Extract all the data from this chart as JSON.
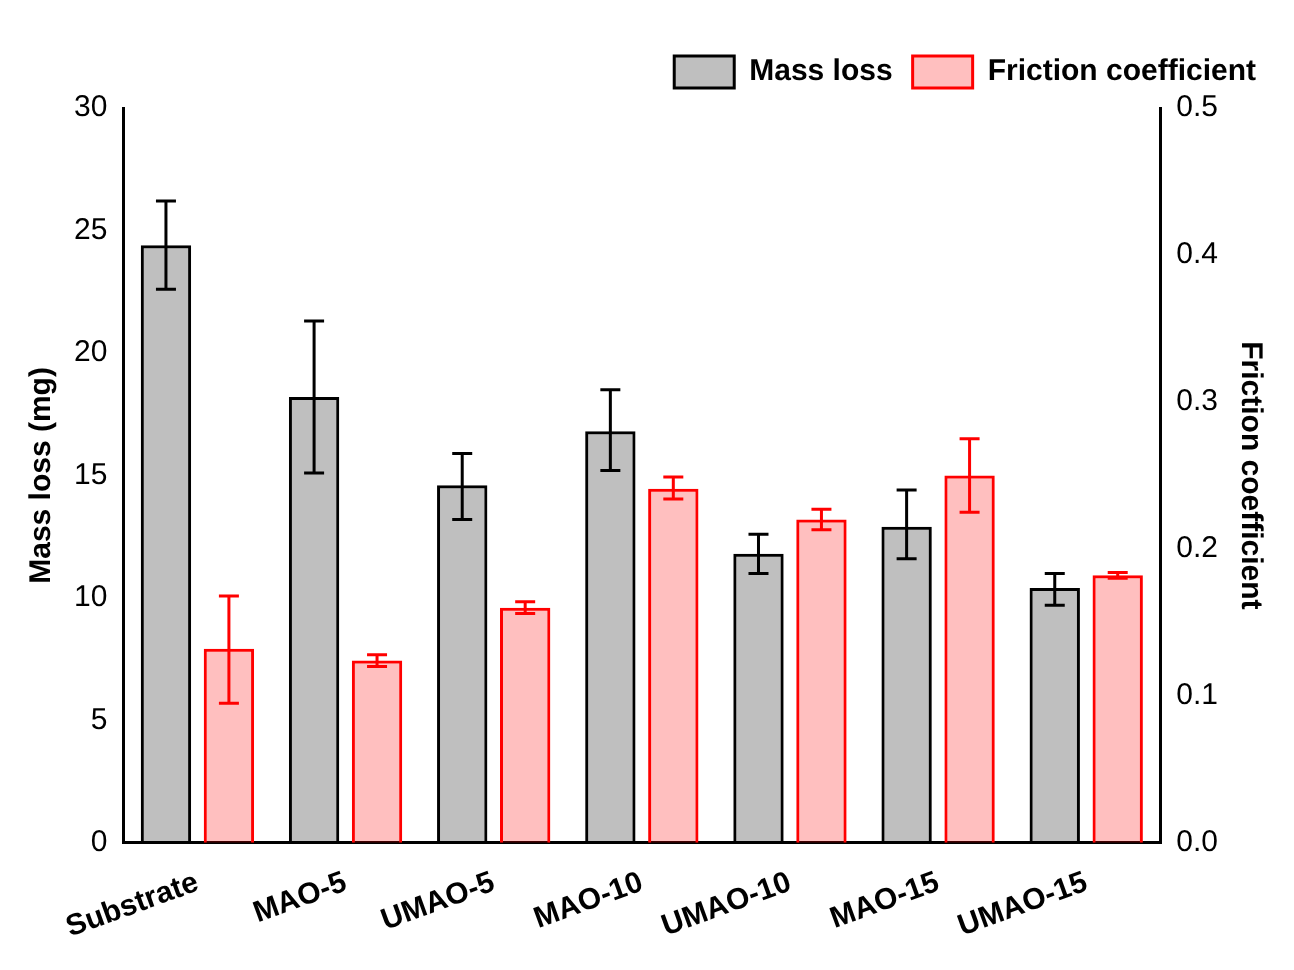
{
  "chart_data": {
    "type": "bar",
    "xlabel": null,
    "ylabel": "Mass loss (mg)",
    "y2label": "Friction coefficient",
    "categories": [
      "Substrate",
      "MAO-5",
      "UMAO-5",
      "MAO-10",
      "UMAO-10",
      "MAO-15",
      "UMAO-15"
    ],
    "series": [
      {
        "name": "Mass loss",
        "color": "#000000",
        "values": [
          24.4,
          18.2,
          14.6,
          16.8,
          11.8,
          12.9,
          10.4
        ],
        "errors": [
          [
            22.6,
            26.2
          ],
          [
            15.1,
            21.3
          ],
          [
            13.2,
            15.9
          ],
          [
            15.2,
            18.5
          ],
          [
            11.0,
            12.6
          ],
          [
            11.6,
            14.4
          ],
          [
            9.7,
            11.0
          ]
        ]
      },
      {
        "name": "Friction coefficient",
        "color": "#ff0000",
        "axis": "y2",
        "values": [
          0.132,
          0.124,
          0.16,
          0.241,
          0.22,
          0.25,
          0.182
        ],
        "errors": [
          [
            0.095,
            0.168
          ],
          [
            0.12,
            0.128
          ],
          [
            0.156,
            0.164
          ],
          [
            0.234,
            0.249
          ],
          [
            0.213,
            0.227
          ],
          [
            0.225,
            0.275
          ],
          [
            0.18,
            0.184
          ]
        ]
      }
    ],
    "ylim": [
      0,
      30
    ],
    "yticks": [
      0,
      5,
      10,
      15,
      20,
      25,
      30
    ],
    "y2lim": [
      0,
      0.5
    ],
    "y2ticks": [
      {
        "value": 0,
        "label": "0.0"
      },
      {
        "value": 0.1,
        "label": "0.1"
      },
      {
        "value": 0.2,
        "label": "0.2"
      },
      {
        "value": 0.3,
        "label": "0.3"
      },
      {
        "value": 0.4,
        "label": "0.4"
      },
      {
        "value": 0.5,
        "label": "0.5"
      }
    ],
    "legend": "top right",
    "grid": false
  }
}
